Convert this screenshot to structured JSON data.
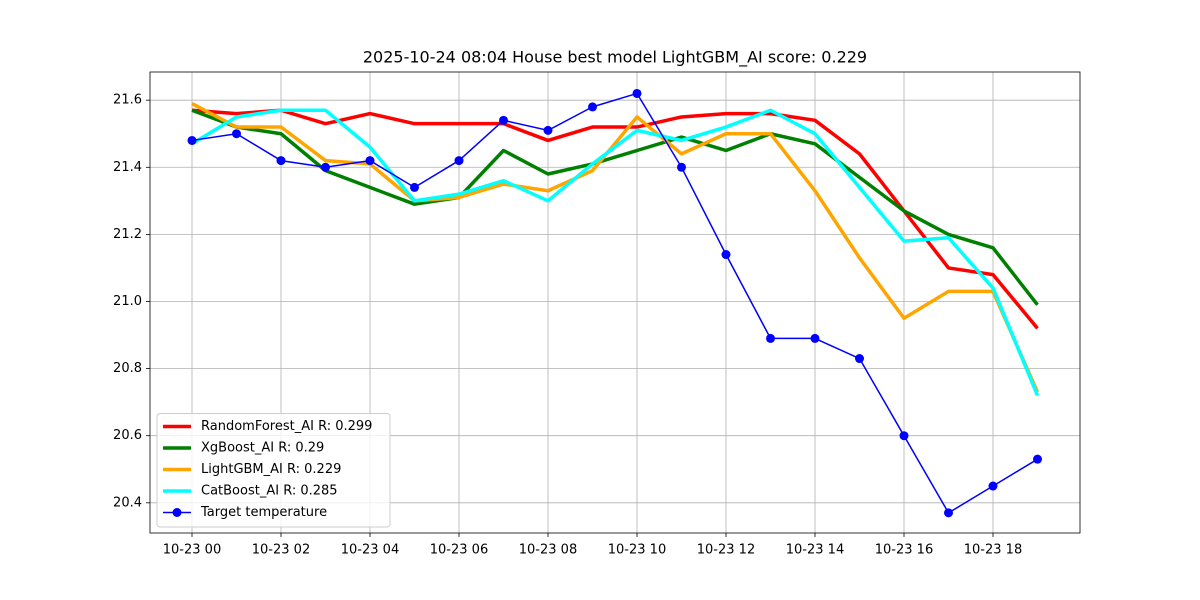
{
  "chart_data": {
    "type": "line",
    "title": "2025-10-24 08:04 House best model LightGBM_AI score: 0.229",
    "categories": [
      "10-23 00",
      null,
      "10-23 02",
      null,
      "10-23 04",
      null,
      "10-23 06",
      null,
      "10-23 08",
      null,
      "10-23 10",
      null,
      "10-23 12",
      null,
      "10-23 14",
      null,
      "10-23 16",
      null,
      "10-23 18",
      null
    ],
    "series": [
      {
        "name": "RandomForest_AI R: 0.299",
        "color": "#ff0000",
        "values": [
          21.57,
          21.56,
          21.57,
          21.53,
          21.56,
          21.53,
          21.53,
          21.53,
          21.48,
          21.52,
          21.52,
          21.55,
          21.56,
          21.56,
          21.54,
          21.44,
          21.27,
          21.1,
          21.08,
          20.92
        ]
      },
      {
        "name": "XgBoost_AI R: 0.29",
        "color": "#008000",
        "values": [
          21.57,
          21.52,
          21.5,
          21.39,
          21.34,
          21.29,
          21.31,
          21.45,
          21.38,
          21.41,
          21.45,
          21.49,
          21.45,
          21.5,
          21.47,
          21.37,
          21.27,
          21.2,
          21.16,
          20.99
        ]
      },
      {
        "name": "LightGBM_AI R: 0.229",
        "color": "#ffa500",
        "values": [
          21.59,
          21.52,
          21.52,
          21.42,
          21.41,
          21.3,
          21.31,
          21.35,
          21.33,
          21.39,
          21.55,
          21.44,
          21.5,
          21.5,
          21.33,
          21.13,
          20.95,
          21.03,
          21.03,
          20.73
        ]
      },
      {
        "name": "CatBoost_AI R: 0.285",
        "color": "#00ffff",
        "values": [
          21.47,
          21.55,
          21.57,
          21.57,
          21.46,
          21.3,
          21.32,
          21.36,
          21.3,
          21.41,
          21.51,
          21.48,
          21.52,
          21.57,
          21.5,
          21.34,
          21.18,
          21.19,
          21.04,
          20.72
        ]
      },
      {
        "name": "Target temperature",
        "color": "#0000ff",
        "markers": true,
        "values": [
          21.48,
          21.5,
          21.42,
          21.4,
          21.42,
          21.34,
          21.42,
          21.54,
          21.51,
          21.58,
          21.62,
          21.4,
          21.14,
          20.89,
          20.89,
          20.83,
          20.6,
          20.37,
          20.45,
          20.53
        ]
      }
    ],
    "ylim": [
      20.31,
      21.684
    ],
    "yticks": [
      20.4,
      20.6,
      20.8,
      {
        "value": 21,
        "label": "21.0"
      },
      21.2,
      21.4,
      21.6
    ],
    "grid": true,
    "legend": "lower left"
  }
}
